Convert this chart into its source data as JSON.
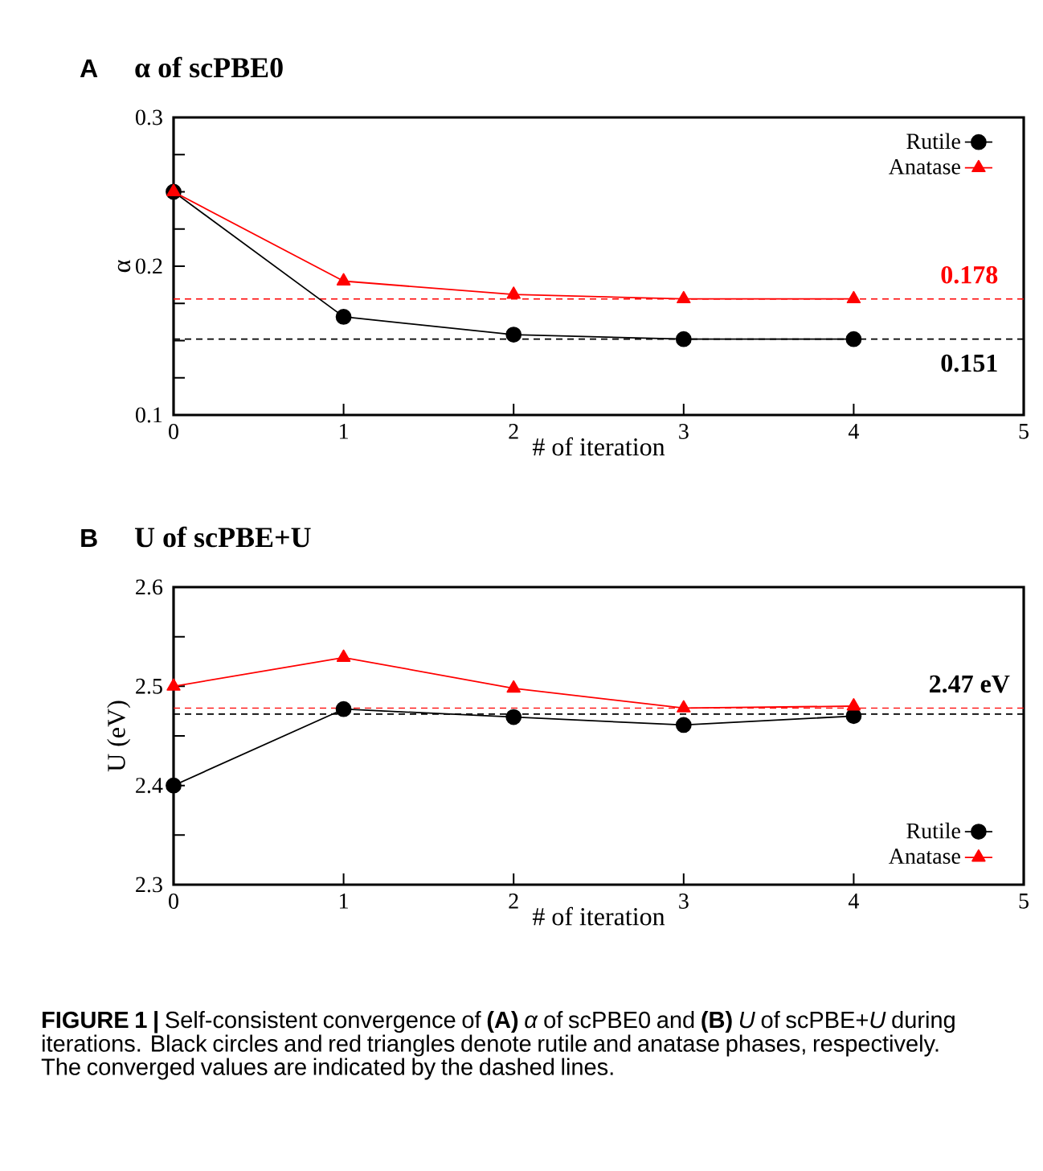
{
  "chart_data": [
    {
      "type": "line",
      "title": "α of scPBE0",
      "xlabel": "# of iteration",
      "ylabel": "α",
      "annotations": [
        "A"
      ],
      "x": [
        0,
        1,
        2,
        3,
        4
      ],
      "series": [
        {
          "name": "Rutile",
          "color": "#000000",
          "marker": "circle",
          "values": [
            0.25,
            0.166,
            0.154,
            0.151,
            0.151
          ]
        },
        {
          "name": "Anatase",
          "color": "#ff0000",
          "marker": "triangle",
          "values": [
            0.25,
            0.19,
            0.181,
            0.178,
            0.178
          ]
        }
      ],
      "xlim": [
        0,
        5
      ],
      "xticks": [
        0,
        1,
        2,
        3,
        4,
        5
      ],
      "ylim": [
        0.1,
        0.3
      ],
      "yticks": [
        0.1,
        {
          "value": 0.125,
          "label": null
        },
        {
          "value": 0.15,
          "label": null
        },
        {
          "value": 0.175,
          "label": null
        },
        0.2,
        {
          "value": 0.225,
          "label": null
        },
        {
          "value": 0.25,
          "label": null
        },
        {
          "value": 0.275,
          "label": null
        },
        0.3
      ],
      "ref_lines": [
        {
          "axis": "y",
          "value": 0.178,
          "label": "0.178",
          "color": "#ff0000",
          "line_style": "dashed"
        },
        {
          "axis": "y",
          "value": 0.151,
          "label": "0.151",
          "color": "#000000",
          "line_style": "dashed"
        }
      ],
      "legend": "top right",
      "grid": false
    },
    {
      "type": "line",
      "title": "U of scPBE+U",
      "xlabel": "# of iteration",
      "ylabel": "U (eV)",
      "annotations": [
        "B",
        "**FIGURE 1 |** Self-consistent convergence of **(A)** *α* of scPBE0 and **(B)** *U* of scPBE+*U* during iterations. Black circles and red triangles denote rutile and anatase phases, respectively. The converged values are indicated by the dashed lines."
      ],
      "x": [
        0,
        1,
        2,
        3,
        4
      ],
      "series": [
        {
          "name": "Rutile",
          "color": "#000000",
          "marker": "circle",
          "values": [
            2.4,
            2.477,
            2.469,
            2.461,
            2.47
          ]
        },
        {
          "name": "Anatase",
          "color": "#ff0000",
          "marker": "triangle",
          "values": [
            2.5,
            2.529,
            2.498,
            2.478,
            2.48
          ]
        }
      ],
      "xlim": [
        0,
        5
      ],
      "xticks": [
        0,
        1,
        2,
        3,
        4,
        5
      ],
      "ylim": [
        2.3,
        2.6
      ],
      "yticks": [
        2.3,
        {
          "value": 2.35,
          "label": null
        },
        2.4,
        {
          "value": 2.45,
          "label": null
        },
        2.5,
        {
          "value": 2.55,
          "label": null
        },
        2.6
      ],
      "ref_lines": [
        {
          "axis": "y",
          "value": 2.478,
          "color": "#ff0000",
          "line_style": "dashed"
        },
        {
          "axis": "y",
          "value": 2.472,
          "label": "2.47 eV",
          "color": "#000000",
          "line_style": "dashed"
        }
      ],
      "legend": "bottom right",
      "grid": false
    }
  ]
}
